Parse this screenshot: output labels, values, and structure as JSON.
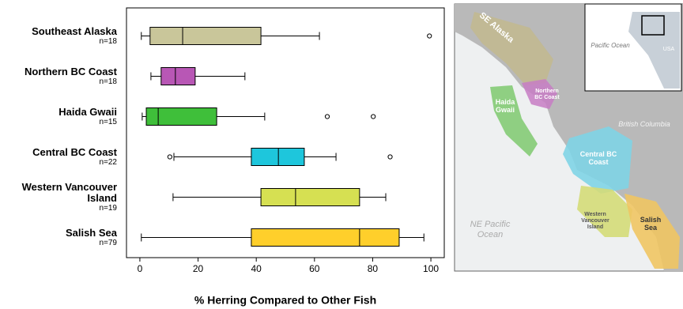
{
  "chart_data": {
    "type": "box",
    "categories": [
      "Southeast Alaska",
      "Northern BC Coast",
      "Haida Gwaii",
      "Central BC Coast",
      "Western Vancouver Island",
      "Salish Sea"
    ],
    "n_labels": [
      "n=18",
      "n=18",
      "n=15",
      "n=22",
      "n=19",
      "n=79"
    ],
    "colors": [
      "#c9c69a",
      "#b857b5",
      "#3fbf3a",
      "#1ec6dc",
      "#d6e052",
      "#ffcf2b"
    ],
    "boxes": [
      {
        "low": 0.5,
        "q1": 3.5,
        "median": 14.7,
        "q3": 41.6,
        "high": 61.7,
        "outliers": [
          99.5
        ]
      },
      {
        "low": 3.8,
        "q1": 7.3,
        "median": 12.2,
        "q3": 19,
        "high": 36.1,
        "outliers": []
      },
      {
        "low": 0.8,
        "q1": 2.2,
        "median": 6.3,
        "q3": 26.4,
        "high": 42.9,
        "outliers": [
          64.4,
          80.2
        ]
      },
      {
        "low": 11.7,
        "q1": 38.3,
        "median": 47.6,
        "q3": 56.5,
        "high": 67.4,
        "outliers": [
          10.3,
          86
        ]
      },
      {
        "low": 11.4,
        "q1": 41.6,
        "median": 53.5,
        "q3": 75.5,
        "high": 84.5,
        "outliers": []
      },
      {
        "low": 0.5,
        "q1": 38.3,
        "median": 75.5,
        "q3": 89.1,
        "high": 97.6,
        "outliers": []
      }
    ],
    "x_label": "% Herring Compared to Other Fish",
    "xlim": [
      -4.6,
      104.6
    ],
    "xticks": [
      0,
      20,
      40,
      60,
      80,
      100
    ]
  },
  "map": {
    "labels": [
      "SE Alaska",
      "Northern BC Coast",
      "Haida Gwaii",
      "British Columbia",
      "Central BC Coast",
      "Western Vancouver Island",
      "Salish Sea",
      "NE Pacific Ocean"
    ],
    "inset": {
      "ocean": "Pacific Ocean",
      "country": "USA"
    }
  }
}
